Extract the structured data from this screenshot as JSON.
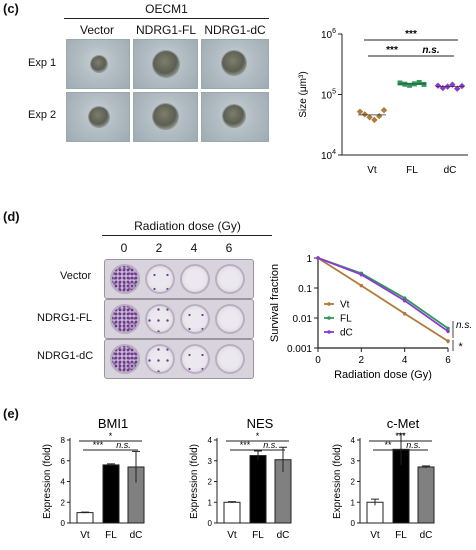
{
  "panel_c": {
    "label": "(c)",
    "header": "OECM1",
    "columns": [
      "Vector",
      "NDRG1-FL",
      "NDRG1-dC"
    ],
    "rows": [
      "Exp 1",
      "Exp 2"
    ]
  },
  "panel_d": {
    "label": "(d)",
    "header": "Radiation dose (Gy)",
    "doses": [
      "0",
      "2",
      "4",
      "6"
    ],
    "rows": [
      "Vector",
      "NDRG1-FL",
      "NDRG1-dC"
    ]
  },
  "panel_e": {
    "label": "(e)"
  },
  "chart_data": [
    {
      "type": "scatter",
      "id": "size",
      "ylabel": "Size (μm³)",
      "yscale": "log",
      "ylim": [
        10000,
        1000000
      ],
      "yticks": [
        {
          "v": 10000,
          "b": "10",
          "e": "4"
        },
        {
          "v": 100000,
          "b": "10",
          "e": "5"
        },
        {
          "v": 1000000,
          "b": "10",
          "e": "6"
        }
      ],
      "categories": [
        "Vt",
        "FL",
        "dC"
      ],
      "colors": [
        "#b07a3a",
        "#2e9a5a",
        "#8a3ad0"
      ],
      "markers": [
        "diamond",
        "square",
        "diamond"
      ],
      "points": [
        [
          52000,
          47000,
          42000,
          38000,
          44000,
          55000
        ],
        [
          155000,
          148000,
          142000,
          150000,
          158000,
          147000
        ],
        [
          140000,
          128000,
          135000,
          145000,
          125000,
          138000
        ]
      ],
      "means": [
        46000,
        150000,
        135000
      ],
      "significance": [
        {
          "a": 0,
          "b": 1,
          "text": "***",
          "italic": false
        },
        {
          "a": 1,
          "b": 2,
          "text": "n.s.",
          "italic": true
        },
        {
          "a": 0,
          "b": 2,
          "text": "***",
          "italic": false
        }
      ]
    },
    {
      "type": "line",
      "id": "survival",
      "xlabel": "Radiation dose (Gy)",
      "ylabel": "Survival fraction",
      "yscale": "log",
      "xlim": [
        0,
        6
      ],
      "ylim": [
        0.001,
        1
      ],
      "xticks": [
        0,
        2,
        4,
        6
      ],
      "yticks": [
        {
          "v": 1,
          "t": "1"
        },
        {
          "v": 0.1,
          "t": "0.1"
        },
        {
          "v": 0.01,
          "t": "0.01"
        },
        {
          "v": 0.001,
          "t": "0.001"
        }
      ],
      "x": [
        0,
        2,
        4,
        6
      ],
      "series": [
        {
          "name": "Vt",
          "color": "#b07a3a",
          "values": [
            1,
            0.12,
            0.014,
            0.0017
          ],
          "err": [
            0,
            0.01,
            0.002,
            0.0003
          ]
        },
        {
          "name": "FL",
          "color": "#2e9a5a",
          "values": [
            1,
            0.31,
            0.046,
            0.0045
          ],
          "err": [
            0,
            0.03,
            0.006,
            0.0006
          ]
        },
        {
          "name": "dC",
          "color": "#8a3ad0",
          "values": [
            1,
            0.28,
            0.038,
            0.0036
          ],
          "err": [
            0,
            0.03,
            0.005,
            0.0005
          ]
        }
      ],
      "legend_position": "bottom-left",
      "significance": [
        {
          "text": "n.s.",
          "italic": true
        },
        {
          "text": "*",
          "italic": false
        }
      ]
    },
    {
      "type": "bar",
      "id": "bmi1",
      "title": "BMI1",
      "ylabel": "Expression (fold)",
      "ylim": [
        0,
        8
      ],
      "yticks": [
        0,
        2,
        4,
        6,
        8
      ],
      "categories": [
        "Vt",
        "FL",
        "dC"
      ],
      "values": [
        1,
        5.6,
        5.4
      ],
      "err": [
        0.05,
        0.1,
        1.5
      ],
      "fills": [
        "#ffffff",
        "#000000",
        "#808080"
      ],
      "significance": [
        {
          "a": 0,
          "b": 1,
          "text": "***",
          "italic": false
        },
        {
          "a": 1,
          "b": 2,
          "text": "n.s.",
          "italic": true
        },
        {
          "a": 0,
          "b": 2,
          "text": "*",
          "italic": false
        }
      ]
    },
    {
      "type": "bar",
      "id": "nes",
      "title": "NES",
      "ylabel": "Expression (fold)",
      "ylim": [
        0,
        4
      ],
      "yticks": [
        0,
        1,
        2,
        3,
        4
      ],
      "categories": [
        "Vt",
        "FL",
        "dC"
      ],
      "values": [
        1,
        3.25,
        3.05
      ],
      "err": [
        0.03,
        0.22,
        0.6
      ],
      "fills": [
        "#ffffff",
        "#000000",
        "#808080"
      ],
      "significance": [
        {
          "a": 0,
          "b": 1,
          "text": "***",
          "italic": false
        },
        {
          "a": 1,
          "b": 2,
          "text": "n.s.",
          "italic": true
        },
        {
          "a": 0,
          "b": 2,
          "text": "*",
          "italic": false
        }
      ]
    },
    {
      "type": "bar",
      "id": "cmet",
      "title": "c-Met",
      "ylabel": "Expression (fold)",
      "ylim": [
        0,
        4
      ],
      "yticks": [
        0,
        1,
        2,
        3,
        4
      ],
      "categories": [
        "Vt",
        "FL",
        "dC"
      ],
      "values": [
        1,
        3.55,
        2.7
      ],
      "err": [
        0.15,
        0.75,
        0.05
      ],
      "fills": [
        "#ffffff",
        "#000000",
        "#808080"
      ],
      "significance": [
        {
          "a": 0,
          "b": 1,
          "text": "**",
          "italic": false
        },
        {
          "a": 1,
          "b": 2,
          "text": "n.s.",
          "italic": true
        },
        {
          "a": 0,
          "b": 2,
          "text": "***",
          "italic": false
        }
      ]
    }
  ]
}
